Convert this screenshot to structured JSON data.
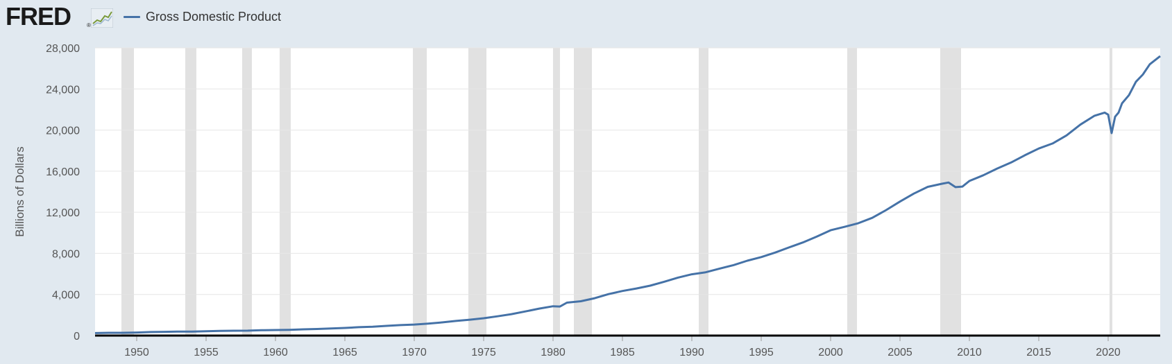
{
  "header": {
    "logo_text": "FRED",
    "logo_reg": "®",
    "legend_label": "Gross Domestic Product"
  },
  "colors": {
    "background": "#e1e9f0",
    "plot_background": "#ffffff",
    "series": "#4572a7",
    "recession_band": "#e1e1e1",
    "gridline": "#e6e6e6",
    "axis_line": "#000000"
  },
  "icons": {
    "logo_chart": "mini-line-chart-icon"
  },
  "chart_data": {
    "type": "line",
    "title": "",
    "xlabel": "",
    "ylabel": "Billions of Dollars",
    "xlim": [
      1947,
      2023.75
    ],
    "ylim": [
      0,
      28000
    ],
    "y_ticks": [
      0,
      4000,
      8000,
      12000,
      16000,
      20000,
      24000,
      28000
    ],
    "y_tick_labels": [
      "0",
      "4,000",
      "8,000",
      "12,000",
      "16,000",
      "20,000",
      "24,000",
      "28,000"
    ],
    "x_ticks": [
      1950,
      1955,
      1960,
      1965,
      1970,
      1975,
      1980,
      1985,
      1990,
      1995,
      2000,
      2005,
      2010,
      2015,
      2020
    ],
    "x_tick_labels": [
      "1950",
      "1955",
      "1960",
      "1965",
      "1970",
      "1975",
      "1980",
      "1985",
      "1990",
      "1995",
      "2000",
      "2005",
      "2010",
      "2015",
      "2020"
    ],
    "grid": true,
    "legend_placement": "top-left",
    "recessions": [
      [
        1948.9,
        1949.8
      ],
      [
        1953.5,
        1954.3
      ],
      [
        1957.6,
        1958.3
      ],
      [
        1960.3,
        1961.1
      ],
      [
        1969.9,
        1970.9
      ],
      [
        1973.9,
        1975.2
      ],
      [
        1980.0,
        1980.5
      ],
      [
        1981.5,
        1982.8
      ],
      [
        1990.5,
        1991.2
      ],
      [
        2001.2,
        2001.9
      ],
      [
        2007.9,
        2009.4
      ],
      [
        2020.1,
        2020.3
      ]
    ],
    "series": [
      {
        "name": "Gross Domestic Product",
        "x": [
          1947,
          1948,
          1949,
          1950,
          1951,
          1952,
          1953,
          1954,
          1955,
          1956,
          1957,
          1958,
          1959,
          1960,
          1961,
          1962,
          1963,
          1964,
          1965,
          1966,
          1967,
          1968,
          1969,
          1970,
          1971,
          1972,
          1973,
          1974,
          1975,
          1976,
          1977,
          1978,
          1979,
          1980,
          1980.5,
          1981,
          1982,
          1983,
          1984,
          1985,
          1986,
          1987,
          1988,
          1989,
          1990,
          1991,
          1992,
          1993,
          1994,
          1995,
          1996,
          1997,
          1998,
          1999,
          2000,
          2001,
          2002,
          2003,
          2004,
          2005,
          2006,
          2007,
          2008,
          2008.5,
          2009,
          2009.5,
          2010,
          2011,
          2012,
          2013,
          2014,
          2015,
          2016,
          2017,
          2018,
          2019,
          2019.75,
          2020,
          2020.25,
          2020.5,
          2020.75,
          2021,
          2021.5,
          2022,
          2022.5,
          2023,
          2023.75
        ],
        "values": [
          243,
          269,
          272,
          300,
          346,
          367,
          389,
          391,
          426,
          449,
          474,
          482,
          522,
          543,
          563,
          605,
          638,
          686,
          743,
          815,
          862,
          943,
          1020,
          1073,
          1165,
          1279,
          1425,
          1545,
          1684,
          1873,
          2082,
          2351,
          2627,
          2857,
          2830,
          3207,
          3343,
          3634,
          4037,
          4339,
          4579,
          4855,
          5236,
          5642,
          5963,
          6158,
          6520,
          6858,
          7287,
          7640,
          8073,
          8578,
          9063,
          9631,
          10251,
          10582,
          10936,
          11458,
          12214,
          13039,
          13816,
          14474,
          14769,
          14900,
          14448,
          14500,
          15049,
          15600,
          16254,
          16843,
          17551,
          18206,
          18695,
          19477,
          20533,
          21381,
          21700,
          21500,
          19700,
          21300,
          21700,
          22600,
          23400,
          24700,
          25400,
          26400,
          27200
        ]
      }
    ]
  }
}
